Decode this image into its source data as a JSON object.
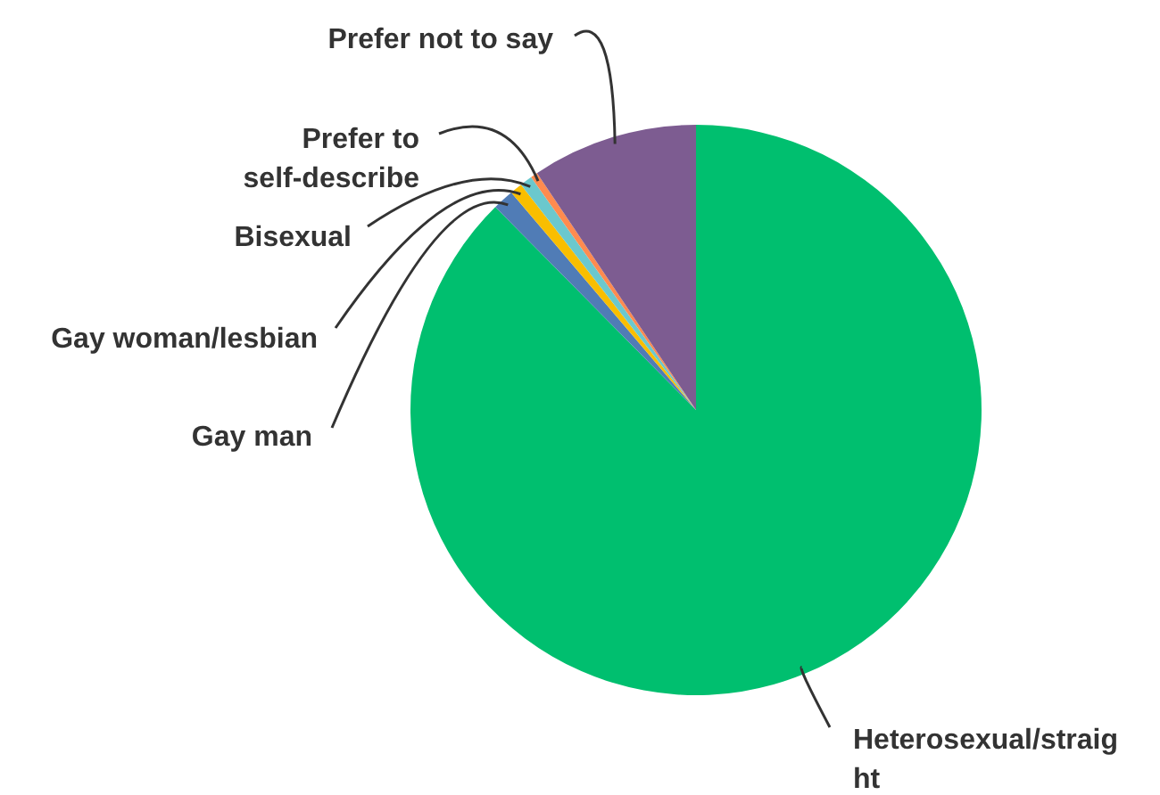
{
  "chart_data": {
    "type": "pie",
    "categories": [
      "Heterosexual/straight",
      "Gay man",
      "Gay woman/lesbian",
      "Bisexual",
      "Prefer to self-describe",
      "Prefer not to say"
    ],
    "values": [
      87.6,
      1.2,
      0.7,
      0.7,
      0.4,
      9.4
    ],
    "colors": [
      "#00bf6f",
      "#507cb6",
      "#f9be00",
      "#6bc8cd",
      "#ff8b4f",
      "#7d5c91"
    ],
    "legend": false
  }
}
